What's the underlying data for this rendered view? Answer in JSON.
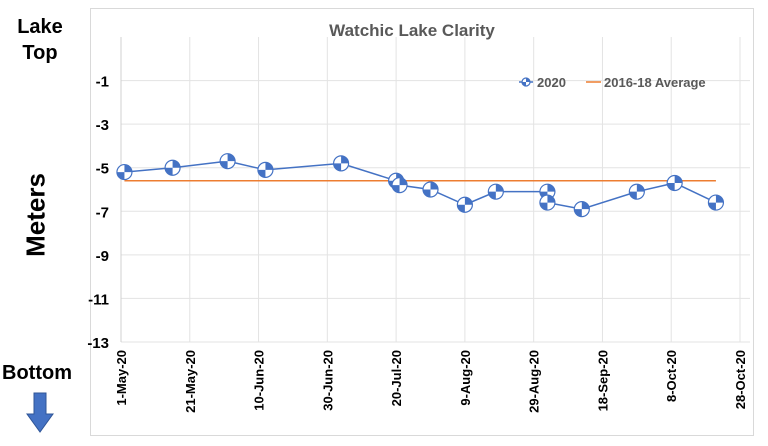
{
  "labels": {
    "lake_top": "Lake Top",
    "bottom": "Bottom",
    "down_arrow_icon": "arrow-down-icon"
  },
  "chart_data": {
    "type": "line",
    "title": "Watchic Lake Clarity",
    "xlabel": "",
    "ylabel": "Meters",
    "ylim": [
      -13,
      1
    ],
    "yticks": [
      -1,
      -3,
      -5,
      -7,
      -9,
      -11,
      -13
    ],
    "xlim": [
      "2020-05-01",
      "2020-10-28"
    ],
    "xticks": [
      "1-May-20",
      "21-May-20",
      "10-Jun-20",
      "30-Jun-20",
      "20-Jul-20",
      "9-Aug-20",
      "29-Aug-20",
      "18-Sep-20",
      "8-Oct-20",
      "28-Oct-20"
    ],
    "grid": true,
    "legend_position": "top-right",
    "series": [
      {
        "name": "2020",
        "color": "#4472c4",
        "marker": "quartered-circle",
        "points": [
          [
            "2020-05-02",
            -5.2
          ],
          [
            "2020-05-16",
            -5.0
          ],
          [
            "2020-06-01",
            -4.7
          ],
          [
            "2020-06-12",
            -5.1
          ],
          [
            "2020-07-04",
            -4.8
          ],
          [
            "2020-07-20",
            -5.6
          ],
          [
            "2020-07-21",
            -5.8
          ],
          [
            "2020-07-30",
            -6.0
          ],
          [
            "2020-08-09",
            -6.7
          ],
          [
            "2020-08-18",
            -6.1
          ],
          [
            "2020-09-02",
            -6.1
          ],
          [
            "2020-09-02",
            -6.6
          ],
          [
            "2020-09-12",
            -6.9
          ],
          [
            "2020-09-28",
            -6.1
          ],
          [
            "2020-10-09",
            -5.7
          ],
          [
            "2020-10-21",
            -6.6
          ]
        ]
      },
      {
        "name": "2016-18 Average",
        "color": "#ed7d31",
        "points": [
          [
            "2020-05-02",
            -5.6
          ],
          [
            "2020-10-21",
            -5.6
          ]
        ]
      }
    ]
  }
}
